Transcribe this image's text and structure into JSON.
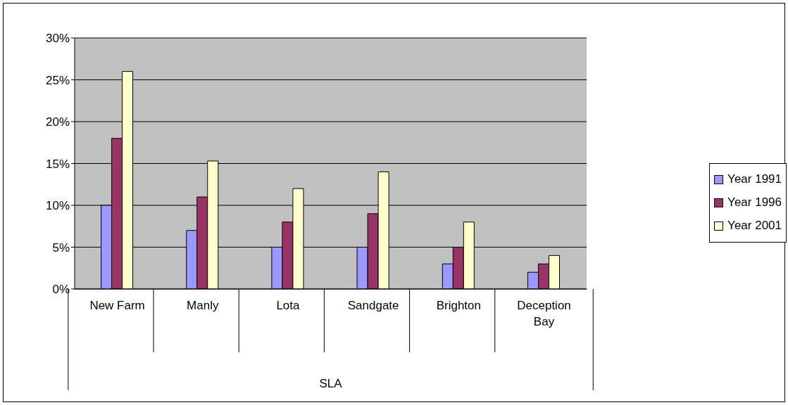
{
  "chart_data": {
    "type": "bar",
    "xlabel": "SLA",
    "categories": [
      "New Farm",
      "Manly",
      "Lota",
      "Sandgate",
      "Brighton",
      "Deception Bay"
    ],
    "series": [
      {
        "name": "Year 1991",
        "color": "#9999ff",
        "values": [
          10,
          7,
          5,
          5,
          3,
          2
        ]
      },
      {
        "name": "Year 1996",
        "color": "#993366",
        "values": [
          18,
          11,
          8,
          9,
          5,
          3
        ]
      },
      {
        "name": "Year 2001",
        "color": "#ffffcc",
        "values": [
          26,
          15.3,
          12,
          14,
          8,
          4
        ]
      }
    ],
    "ylim": [
      0,
      30
    ],
    "yticks": [
      {
        "value": 0,
        "label": "0%"
      },
      {
        "value": 5,
        "label": "5%"
      },
      {
        "value": 10,
        "label": "10%"
      },
      {
        "value": 15,
        "label": "15%"
      },
      {
        "value": 20,
        "label": "20%"
      },
      {
        "value": 25,
        "label": "25%"
      },
      {
        "value": 30,
        "label": "30%"
      }
    ],
    "grid": "y",
    "legend": "right"
  }
}
